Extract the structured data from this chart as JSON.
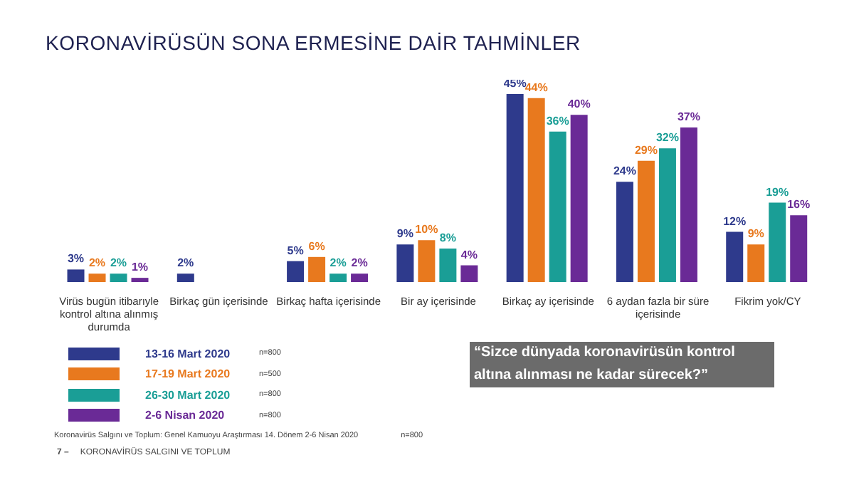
{
  "chart_data": {
    "type": "bar",
    "title": "KORONAVİRÜSÜN SONA ERMESİNE DAİR TAHMİNLER",
    "categories": [
      "Virüs bugün itibarıyle kontrol altına alınmış durumda",
      "Birkaç gün içerisinde",
      "Birkaç hafta içerisinde",
      "Bir ay içerisinde",
      "Birkaç ay içerisinde",
      "6 aydan fazla bir süre içerisinde",
      "Fikrim yok/CY"
    ],
    "series": [
      {
        "name": "13-16 Mart 2020",
        "color": "#2e3a8c",
        "values": [
          3,
          2,
          5,
          9,
          45,
          24,
          12
        ],
        "value_labels": [
          "3%",
          "2%",
          "5%",
          "9%",
          "45%",
          "24%",
          "12%"
        ]
      },
      {
        "name": "17-19 Mart 2020",
        "color": "#e8791e",
        "values": [
          2,
          null,
          6,
          10,
          44,
          29,
          9
        ],
        "value_labels": [
          "2%",
          null,
          "6%",
          "10%",
          "44%",
          "29%",
          "9%"
        ]
      },
      {
        "name": "26-30 Mart 2020",
        "color": "#1a9e96",
        "values": [
          2,
          null,
          2,
          8,
          36,
          32,
          19
        ],
        "value_labels": [
          "2%",
          null,
          "2%",
          "8%",
          "36%",
          "32%",
          "19%"
        ]
      },
      {
        "name": "2-6 Nisan 2020",
        "color": "#6a2a96",
        "values": [
          1,
          null,
          2,
          4,
          40,
          37,
          16
        ],
        "value_labels": [
          "1%",
          null,
          "2%",
          "4%",
          "40%",
          "37%",
          "16%"
        ]
      }
    ],
    "tick_labels": "x",
    "legend": "bottom left",
    "annotations": [
      "n=800",
      "n=500",
      "n=800",
      "n=800",
      "“Sizce dünyada koronavirüsün kontrol altına alınması ne kadar sürecek?”",
      "Koronavirüs Salgını ve Toplum: Genel Kamuoyu Araştırması 14. Dönem 2-6 Nisan 2020",
      "n=800",
      "7 –",
      "KORONAVİRÜS SALGINI VE TOPLUM"
    ]
  }
}
